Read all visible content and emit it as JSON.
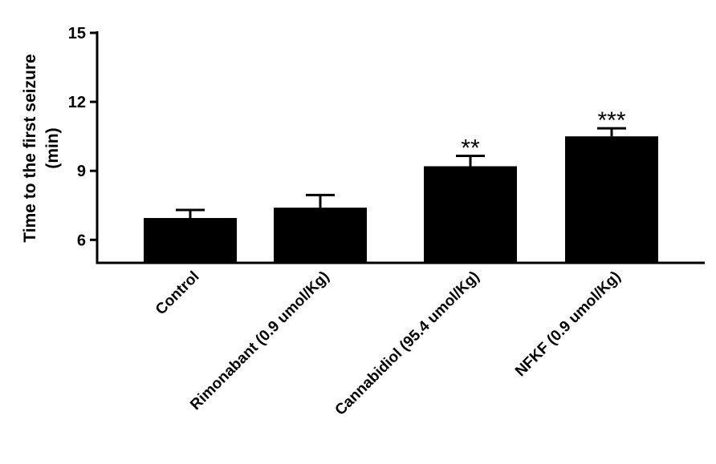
{
  "chart_data": {
    "type": "bar",
    "title": "",
    "xlabel": "",
    "ylabel_lines": [
      "Time to the first seizure",
      "(min)"
    ],
    "categories": [
      "Control",
      "Rimonabant (0.9 umol/Kg)",
      "Cannabidiol (95.4 umol/Kg)",
      "NFKF (0.9 umol/Kg)"
    ],
    "values": [
      6.95,
      7.4,
      9.2,
      10.5
    ],
    "errors": [
      0.35,
      0.55,
      0.45,
      0.35
    ],
    "significance": [
      "",
      "",
      "**",
      "***"
    ],
    "ylim": [
      5,
      15
    ],
    "yticks": [
      {
        "value": 6,
        "label": "6"
      },
      {
        "value": 9,
        "label": "9"
      },
      {
        "value": 12,
        "label": "12"
      },
      {
        "value": 15,
        "label": "15"
      }
    ],
    "bar_color": "#000000",
    "grid": false,
    "legend": "none"
  }
}
